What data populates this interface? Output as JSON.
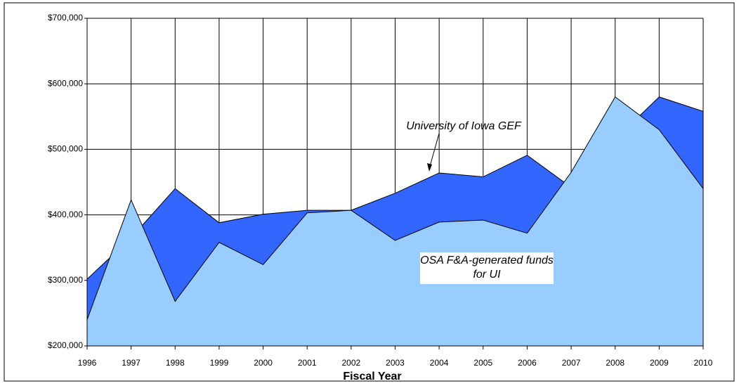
{
  "chart_data": {
    "type": "area",
    "categories": [
      "1996",
      "1997",
      "1998",
      "1999",
      "2000",
      "2001",
      "2002",
      "2003",
      "2004",
      "2005",
      "2006",
      "2007",
      "2008",
      "2009",
      "2010"
    ],
    "series": [
      {
        "name": "University of Iowa GEF",
        "color": "#3366ff",
        "values": [
          302000,
          365000,
          440000,
          388000,
          401000,
          407000,
          407000,
          433000,
          464000,
          458000,
          491000,
          442000,
          515000,
          580000,
          558000
        ]
      },
      {
        "name": "OSA F&A-generated funds for UI",
        "color": "#99ccff",
        "values": [
          240000,
          423000,
          268000,
          358000,
          324000,
          403000,
          407000,
          361000,
          389000,
          392000,
          372000,
          465000,
          580000,
          530000,
          440000
        ]
      }
    ],
    "xlabel": "Fiscal Year",
    "ylim": [
      200000,
      700000
    ],
    "yticks": [
      {
        "value": 200000,
        "label": "$200,000"
      },
      {
        "value": 300000,
        "label": "$300,000"
      },
      {
        "value": 400000,
        "label": "$400,000"
      },
      {
        "value": 500000,
        "label": "$500,000"
      },
      {
        "value": 600000,
        "label": "$600,000"
      },
      {
        "value": 700000,
        "label": "$700,000"
      }
    ],
    "grid": true
  }
}
